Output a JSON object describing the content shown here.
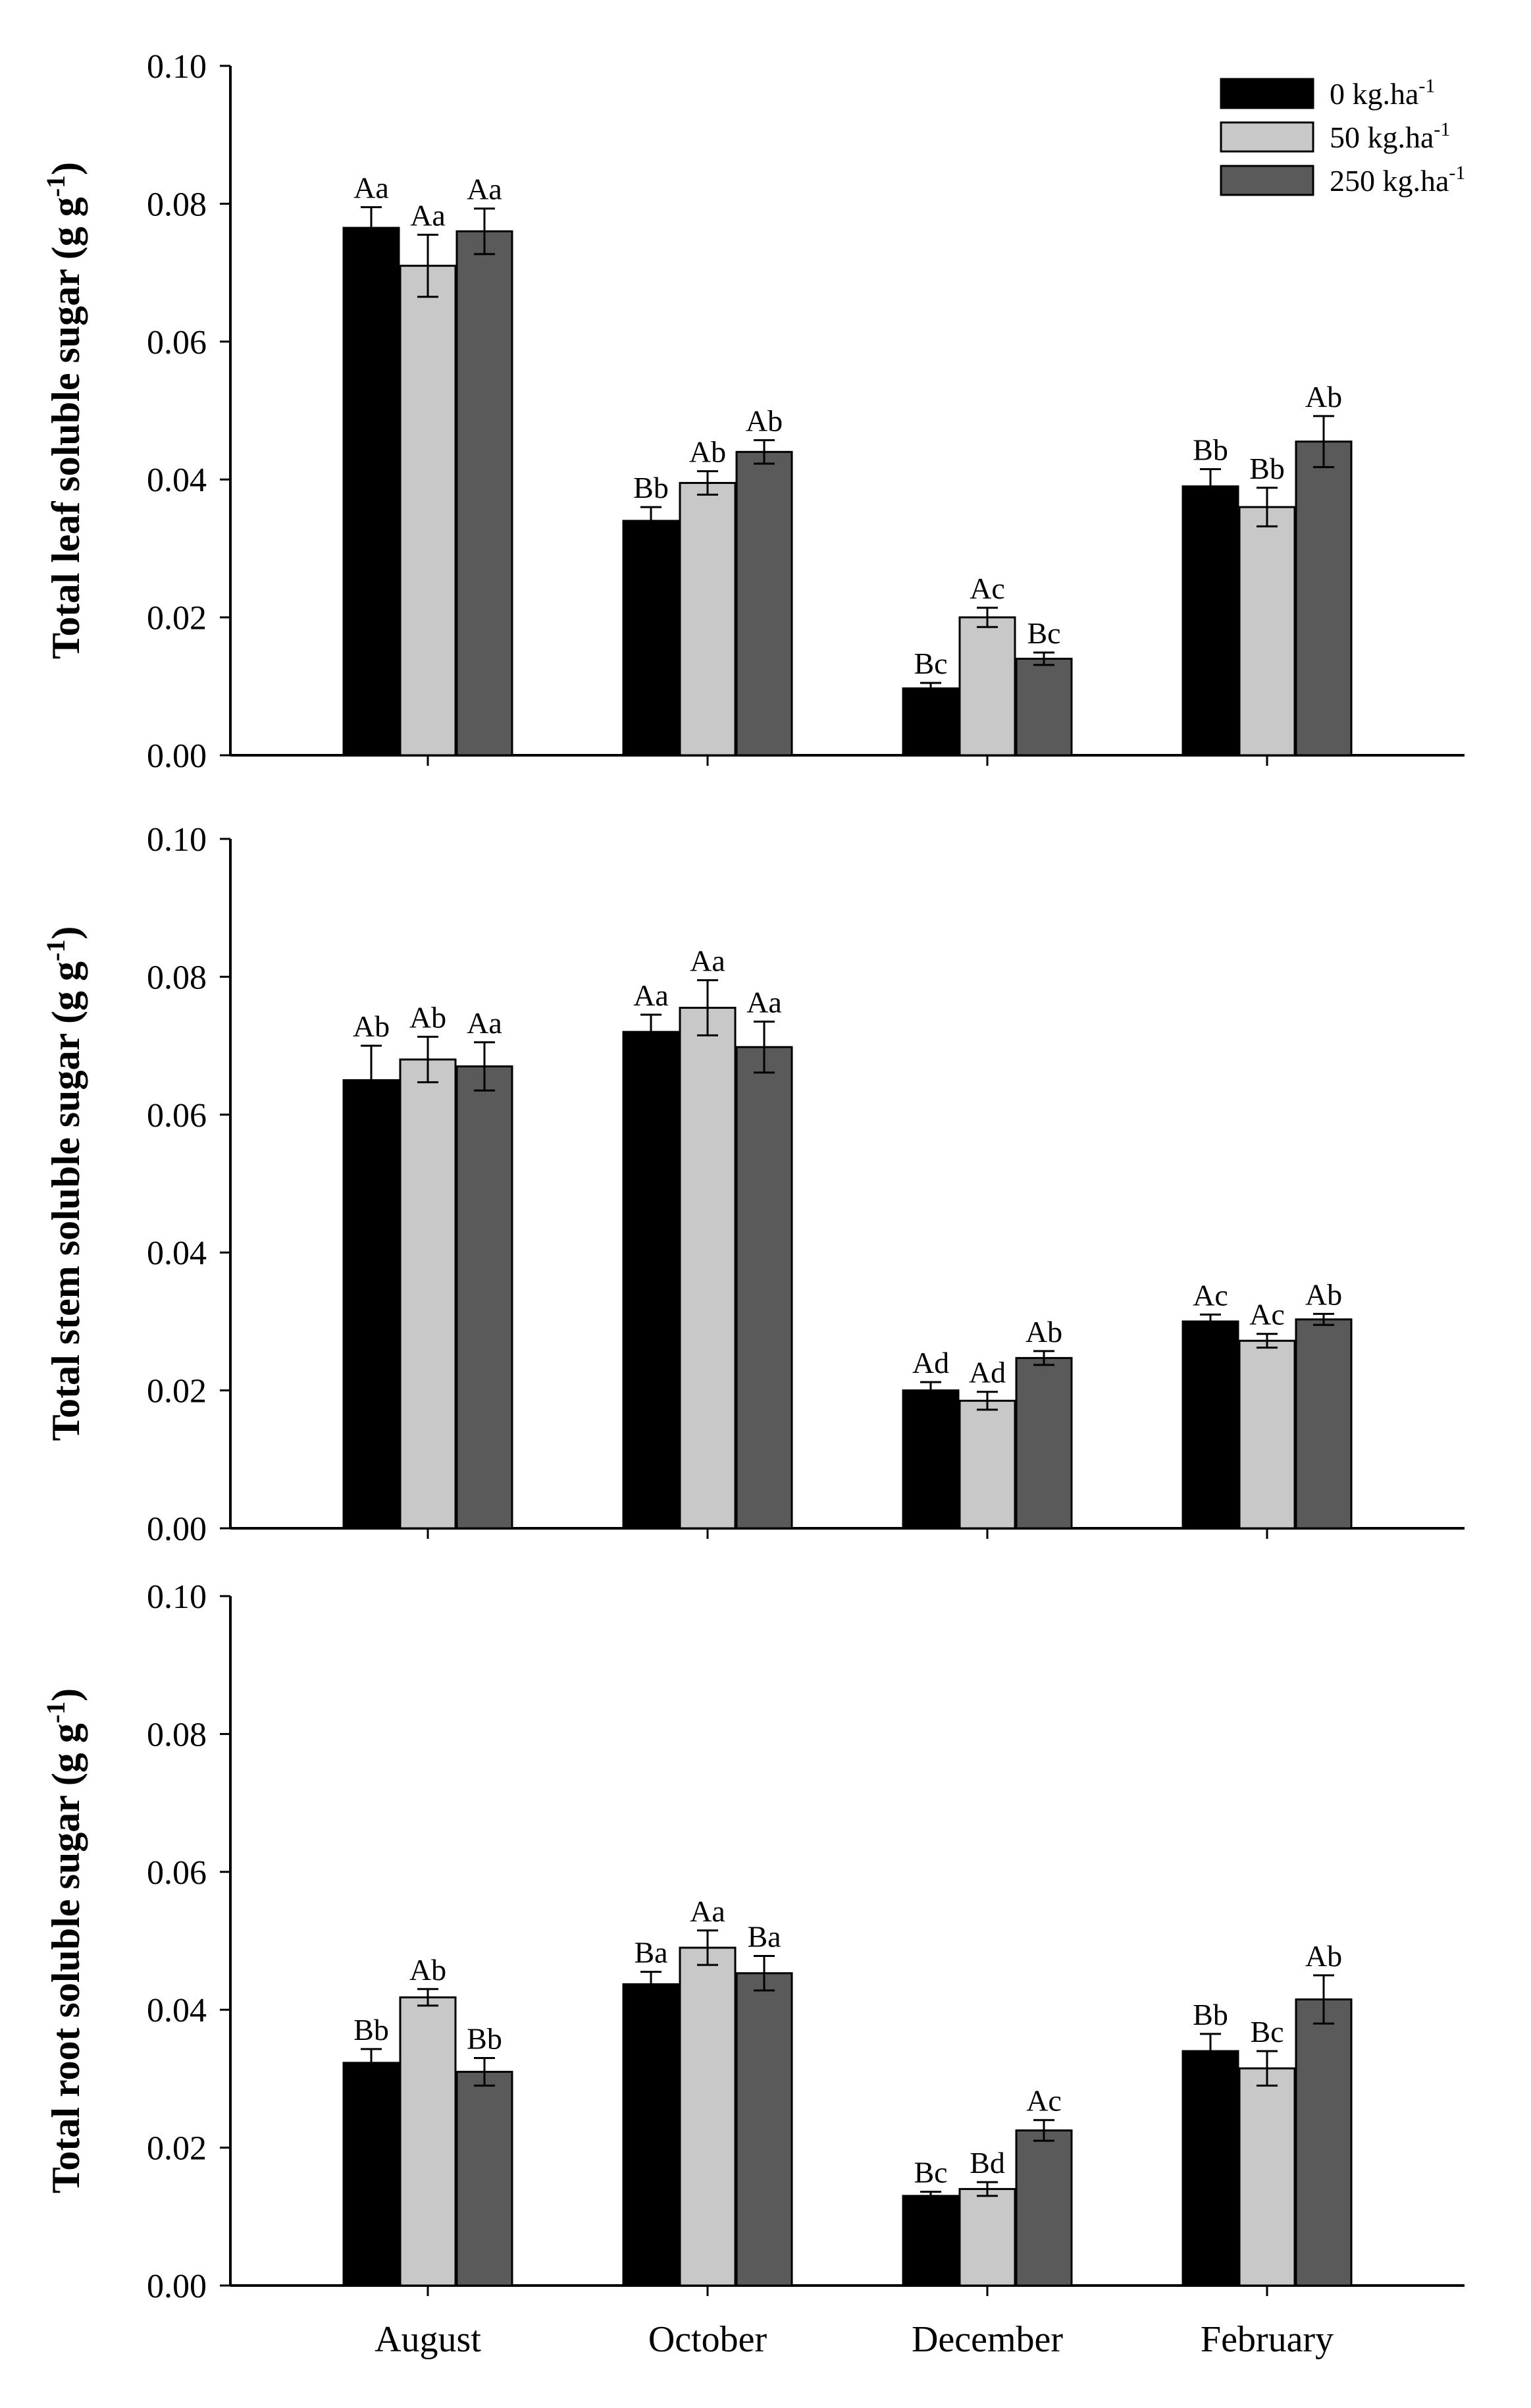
{
  "chart_data": [
    {
      "type": "bar",
      "id": "leaf",
      "ylabel": "Total leaf soluble sugar (g g",
      "ylabel_sup": "-1",
      "ylabel_close": ")",
      "ylim": [
        0,
        0.1
      ],
      "yticks": [
        "0.00",
        "0.02",
        "0.04",
        "0.06",
        "0.08",
        "0.10"
      ],
      "categories": [
        "August",
        "October",
        "December",
        "February"
      ],
      "series": [
        {
          "name": "0 kg.ha-1",
          "values": [
            0.0765,
            0.034,
            0.0097,
            0.039
          ],
          "errors": [
            0.003,
            0.002,
            0.0008,
            0.0025
          ],
          "labels": [
            "Aa",
            "Bb",
            "Bc",
            "Bb"
          ]
        },
        {
          "name": "50 kg.ha-1",
          "values": [
            0.071,
            0.0395,
            0.02,
            0.036
          ],
          "errors": [
            0.0045,
            0.0017,
            0.0014,
            0.0028
          ],
          "labels": [
            "Aa",
            "Ab",
            "Ac",
            "Bb"
          ]
        },
        {
          "name": "250 kg.ha-1",
          "values": [
            0.076,
            0.044,
            0.014,
            0.0455
          ],
          "errors": [
            0.0033,
            0.0017,
            0.0009,
            0.0037
          ],
          "labels": [
            "Aa",
            "Ab",
            "Bc",
            "Ab"
          ]
        }
      ]
    },
    {
      "type": "bar",
      "id": "stem",
      "ylabel": "Total stem soluble sugar (g g",
      "ylabel_sup": "-1",
      "ylabel_close": ")",
      "ylim": [
        0,
        0.1
      ],
      "yticks": [
        "0.00",
        "0.02",
        "0.04",
        "0.06",
        "0.08",
        "0.10"
      ],
      "categories": [
        "August",
        "October",
        "December",
        "February"
      ],
      "series": [
        {
          "name": "0 kg.ha-1",
          "values": [
            0.065,
            0.072,
            0.02,
            0.03
          ],
          "errors": [
            0.005,
            0.0025,
            0.0012,
            0.001
          ],
          "labels": [
            "Ab",
            "Aa",
            "Ad",
            "Ac"
          ]
        },
        {
          "name": "50 kg.ha-1",
          "values": [
            0.068,
            0.0755,
            0.0185,
            0.0272
          ],
          "errors": [
            0.0033,
            0.004,
            0.0013,
            0.001
          ],
          "labels": [
            "Ab",
            "Aa",
            "Ad",
            "Ac"
          ]
        },
        {
          "name": "250 kg.ha-1",
          "values": [
            0.067,
            0.0698,
            0.0247,
            0.0303
          ],
          "errors": [
            0.0035,
            0.0037,
            0.001,
            0.0008
          ],
          "labels": [
            "Aa",
            "Aa",
            "Ab",
            "Ab"
          ]
        }
      ]
    },
    {
      "type": "bar",
      "id": "root",
      "ylabel": "Total root soluble sugar (g g",
      "ylabel_sup": "-1",
      "ylabel_close": ")",
      "ylim": [
        0,
        0.1
      ],
      "yticks": [
        "0.00",
        "0.02",
        "0.04",
        "0.06",
        "0.08",
        "0.10"
      ],
      "categories": [
        "August",
        "October",
        "December",
        "February"
      ],
      "series": [
        {
          "name": "0 kg.ha-1",
          "values": [
            0.0323,
            0.0437,
            0.013,
            0.034
          ],
          "errors": [
            0.002,
            0.0018,
            0.0006,
            0.0025
          ],
          "labels": [
            "Bb",
            "Ba",
            "Bc",
            "Bb"
          ]
        },
        {
          "name": "50 kg.ha-1",
          "values": [
            0.0418,
            0.049,
            0.014,
            0.0315
          ],
          "errors": [
            0.0012,
            0.0025,
            0.001,
            0.0025
          ],
          "labels": [
            "Ab",
            "Aa",
            "Bd",
            "Bc"
          ]
        },
        {
          "name": "250 kg.ha-1",
          "values": [
            0.031,
            0.0453,
            0.0225,
            0.0415
          ],
          "errors": [
            0.002,
            0.0025,
            0.0015,
            0.0035
          ],
          "labels": [
            "Bb",
            "Ba",
            "Ac",
            "Ab"
          ]
        }
      ]
    }
  ],
  "legend": {
    "position": "top-right",
    "items": [
      {
        "base": "0 kg.ha",
        "sup": "-1",
        "color": "#000000"
      },
      {
        "base": "50 kg.ha",
        "sup": "-1",
        "color": "#c8c8c8"
      },
      {
        "base": "250 kg.ha",
        "sup": "-1",
        "color": "#5a5a5a"
      }
    ]
  },
  "colors": {
    "series": [
      "#000000",
      "#c8c8c8",
      "#5a5a5a"
    ],
    "axis": "#000000"
  }
}
